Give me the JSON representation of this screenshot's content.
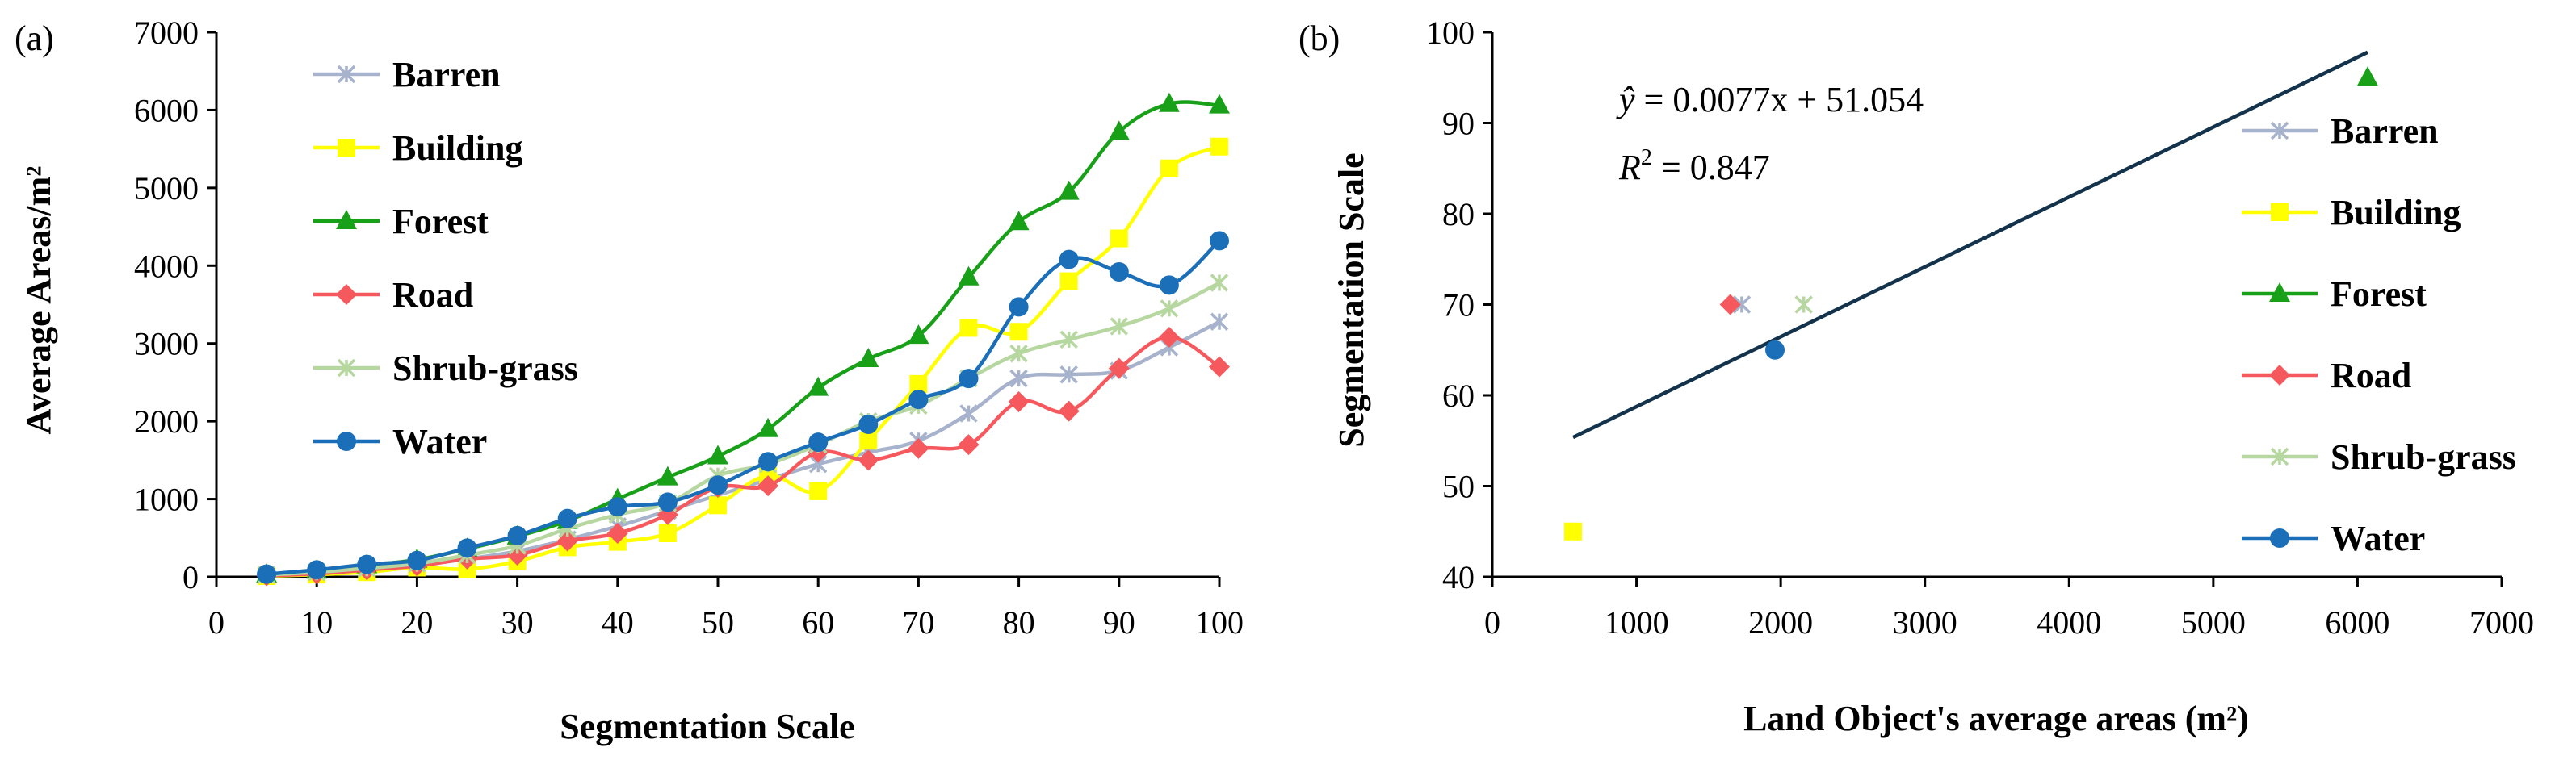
{
  "colors": {
    "Barren": "#a7b3cc",
    "Building": "#ffff00",
    "Forest": "#18a018",
    "Road": "#f5595d",
    "Shrub-grass": "#b6d7a0",
    "Water": "#1a6fb8",
    "fit": "#13324b"
  },
  "chart_data": [
    {
      "type": "line",
      "panel_label": "(a)",
      "xlabel": "Segmentation Scale",
      "ylabel": "Average Areas/m²",
      "xlim": [
        0,
        100
      ],
      "ylim": [
        0,
        7000
      ],
      "x_ticks": [
        "0",
        "10",
        "20",
        "30",
        "40",
        "50",
        "60",
        "70",
        "80",
        "90",
        "100"
      ],
      "y_ticks": [
        "0",
        "1000",
        "2000",
        "3000",
        "4000",
        "5000",
        "6000",
        "7000"
      ],
      "legend_position": "top-left",
      "x": [
        5,
        10,
        15,
        20,
        25,
        30,
        35,
        40,
        45,
        50,
        55,
        60,
        65,
        70,
        75,
        80,
        85,
        90,
        95,
        100
      ],
      "series": [
        {
          "name": "Barren",
          "marker": "x",
          "values": [
            20,
            60,
            100,
            150,
            230,
            330,
            480,
            650,
            850,
            1050,
            1250,
            1450,
            1600,
            1750,
            2100,
            2550,
            2600,
            2650,
            2950,
            3280
          ]
        },
        {
          "name": "Building",
          "marker": "square",
          "values": [
            10,
            30,
            60,
            120,
            100,
            200,
            380,
            450,
            560,
            920,
            1300,
            1100,
            1750,
            2480,
            3200,
            3150,
            3800,
            4350,
            5250,
            5530
          ]
        },
        {
          "name": "Forest",
          "marker": "triangle",
          "values": [
            30,
            80,
            150,
            220,
            360,
            520,
            720,
            1000,
            1280,
            1550,
            1900,
            2430,
            2800,
            3100,
            3850,
            4560,
            4950,
            5720,
            6080,
            6060
          ]
        },
        {
          "name": "Road",
          "marker": "diamond",
          "values": [
            15,
            40,
            90,
            140,
            230,
            280,
            460,
            560,
            800,
            1150,
            1170,
            1600,
            1500,
            1650,
            1700,
            2250,
            2130,
            2680,
            3080,
            2700
          ]
        },
        {
          "name": "Shrub-grass",
          "marker": "x",
          "values": [
            25,
            60,
            110,
            170,
            280,
            400,
            620,
            800,
            950,
            1300,
            1450,
            1700,
            2000,
            2200,
            2550,
            2870,
            3050,
            3220,
            3450,
            3780
          ]
        },
        {
          "name": "Water",
          "marker": "circle",
          "values": [
            35,
            90,
            160,
            210,
            370,
            530,
            750,
            900,
            960,
            1180,
            1480,
            1730,
            1960,
            2280,
            2550,
            3470,
            4080,
            3920,
            3750,
            4320
          ]
        }
      ]
    },
    {
      "type": "scatter",
      "panel_label": "(b)",
      "xlabel": "Land Object's average areas (m²)",
      "ylabel": "Segmentation Scale",
      "xlim": [
        0,
        7000
      ],
      "ylim": [
        40,
        100
      ],
      "x_ticks": [
        "0",
        "1000",
        "2000",
        "3000",
        "4000",
        "5000",
        "6000",
        "7000"
      ],
      "y_ticks": [
        "40",
        "50",
        "60",
        "70",
        "80",
        "90",
        "100"
      ],
      "legend_position": "right",
      "equation": {
        "yhat": "ŷ",
        "rhs": " = 0.0077x + 51.054",
        "r2_label": "R",
        "r2_sup": "2",
        "r2_value": " = 0.847"
      },
      "fit_line": {
        "slope": 0.0077,
        "intercept": 51.054,
        "x_range": [
          560,
          6070
        ]
      },
      "series": [
        {
          "name": "Barren",
          "marker": "x",
          "x": 1730,
          "y": 70
        },
        {
          "name": "Building",
          "marker": "square",
          "x": 560,
          "y": 45
        },
        {
          "name": "Forest",
          "marker": "triangle",
          "x": 6070,
          "y": 95
        },
        {
          "name": "Road",
          "marker": "diamond",
          "x": 1650,
          "y": 70
        },
        {
          "name": "Shrub-grass",
          "marker": "x",
          "x": 2160,
          "y": 70
        },
        {
          "name": "Water",
          "marker": "circle",
          "x": 1960,
          "y": 65
        }
      ]
    }
  ]
}
